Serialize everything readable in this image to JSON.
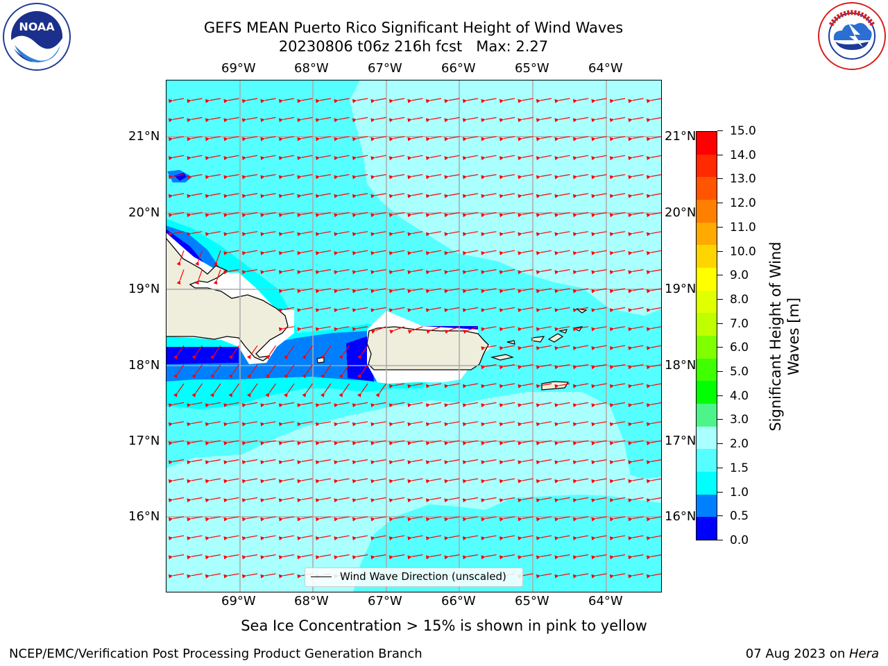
{
  "header": {
    "title_line1": "GEFS MEAN Puerto Rico Significant Height of Wind Waves",
    "title_line2": "20230806 t06z 216h fcst   Max: 2.27"
  },
  "logos": {
    "left": {
      "icon": "noaa-logo",
      "text": "NOAA"
    },
    "right": {
      "icon": "nws-logo",
      "text": "NATIONAL WEATHER SERVICE"
    }
  },
  "map": {
    "longitude_labels": [
      "69°W",
      "68°W",
      "67°W",
      "66°W",
      "65°W",
      "64°W"
    ],
    "latitude_labels": [
      "21°N",
      "20°N",
      "19°N",
      "18°N",
      "17°N",
      "16°N"
    ],
    "legend_label": "Wind Wave Direction (unscaled)",
    "arrow_color": "#ff0000",
    "land_color": "#efeedd"
  },
  "colorbar": {
    "title_line1": "Significant Height of Wind",
    "title_line2": "Waves [m]",
    "ticks": [
      "15.0",
      "14.0",
      "13.0",
      "12.0",
      "11.0",
      "10.0",
      "9.0",
      "8.0",
      "7.0",
      "6.0",
      "5.0",
      "4.0",
      "3.0",
      "2.0",
      "1.5",
      "1.0",
      "0.5",
      "0.0"
    ],
    "colors_top_to_bottom": [
      "#ff0000",
      "#ff2a00",
      "#ff5500",
      "#ff8000",
      "#ffaa00",
      "#ffd500",
      "#ffff00",
      "#e0ff00",
      "#c0ff00",
      "#80ff00",
      "#40ff00",
      "#00ff00",
      "#4df48a",
      "#aaffff",
      "#55ffff",
      "#00ffff",
      "#0080ff",
      "#0000ff"
    ]
  },
  "notes": {
    "sea_ice": "Sea Ice Concentration > 15% is shown in pink to yellow",
    "footer_left": "NCEP/EMC/Verification Post Processing Product Generation Branch",
    "footer_right_prefix": "07 Aug 2023 on ",
    "footer_right_host": "Hera"
  }
}
